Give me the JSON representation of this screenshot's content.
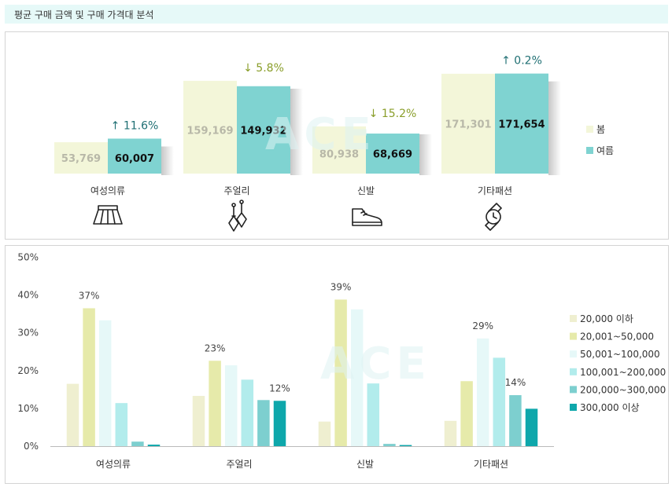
{
  "header": {
    "title": "평균 구매 금액 및 구매 가격대 분석"
  },
  "colors": {
    "spring": "#f3f6d9",
    "summer": "#7fd3d1",
    "up_text": "#1f6f73",
    "down_text": "#8a9e2a",
    "bins": [
      "#efefd0",
      "#e6eaaa",
      "#e6f8f8",
      "#b2ecec",
      "#7dcfcf",
      "#0ea7ab"
    ]
  },
  "chart_data": [
    {
      "type": "bar",
      "title": "",
      "categories": [
        "여성의류",
        "주얼리",
        "신발",
        "기타패션"
      ],
      "series": [
        {
          "name": "봄",
          "values": [
            53769,
            159169,
            80938,
            171301
          ]
        },
        {
          "name": "여름",
          "values": [
            60007,
            149932,
            68669,
            171654
          ]
        }
      ],
      "value_labels": {
        "봄": [
          "53,769",
          "159,169",
          "80,938",
          "171,301"
        ],
        "여름": [
          "60,007",
          "149,932",
          "68,669",
          "171,654"
        ]
      },
      "changes": [
        {
          "dir": "up",
          "arrow": "↑",
          "text": "11.6%"
        },
        {
          "dir": "down",
          "arrow": "↓",
          "text": "5.8%"
        },
        {
          "dir": "down",
          "arrow": "↓",
          "text": "15.2%"
        },
        {
          "dir": "up",
          "arrow": "↑",
          "text": "0.2%"
        }
      ],
      "icons": [
        "skirt-icon",
        "earrings-icon",
        "sneaker-icon",
        "watch-icon"
      ],
      "ylim": [
        0,
        200000
      ],
      "legend": "right"
    },
    {
      "type": "bar",
      "title": "",
      "categories": [
        "여성의류",
        "주얼리",
        "신발",
        "기타패션"
      ],
      "series": [
        {
          "name": "20,000 이하",
          "values": [
            16.5,
            13.3,
            6.5,
            6.7
          ]
        },
        {
          "name": "20,001~50,000",
          "values": [
            36.5,
            22.6,
            38.8,
            17.2
          ]
        },
        {
          "name": "50,001~100,000",
          "values": [
            33.3,
            21.4,
            36.2,
            28.5
          ]
        },
        {
          "name": "100,001~200,000",
          "values": [
            11.4,
            17.6,
            16.6,
            23.4
          ]
        },
        {
          "name": "200,000~300,000",
          "values": [
            1.2,
            12.2,
            0.6,
            13.5
          ]
        },
        {
          "name": "300,000 이상",
          "values": [
            0.4,
            12.0,
            0.3,
            9.9
          ]
        }
      ],
      "annotations": [
        {
          "category": 0,
          "series": 1,
          "text": "37%"
        },
        {
          "category": 1,
          "series": 1,
          "text": "23%"
        },
        {
          "category": 1,
          "series": 5,
          "text": "12%"
        },
        {
          "category": 2,
          "series": 1,
          "text": "39%"
        },
        {
          "category": 3,
          "series": 2,
          "text": "29%"
        },
        {
          "category": 3,
          "series": 4,
          "text": "14%"
        }
      ],
      "yticks": [
        "0%",
        "10%",
        "20%",
        "30%",
        "40%",
        "50%"
      ],
      "ylim": [
        0,
        50
      ],
      "legend": "right"
    }
  ]
}
